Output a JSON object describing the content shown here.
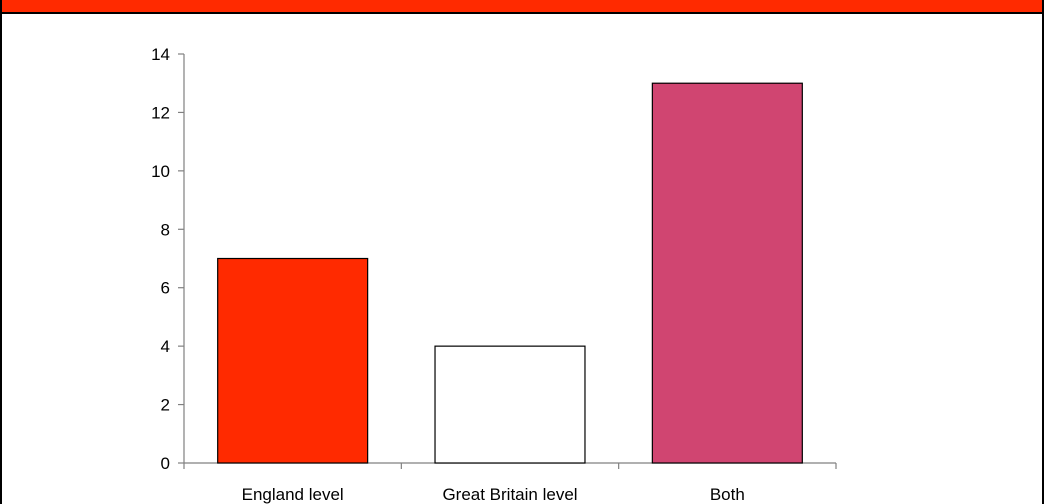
{
  "theme": {
    "top_bar_color": "#ff2a00"
  },
  "chart_data": {
    "type": "bar",
    "categories": [
      "England level",
      "Great Britain level",
      "Both"
    ],
    "values": [
      7,
      4,
      13
    ],
    "bar_colors": [
      "#ff2a00",
      "#ffffff",
      "#d04571"
    ],
    "ylim": [
      0,
      14
    ],
    "yticks": [
      "0",
      "2",
      "4",
      "6",
      "8",
      "10",
      "12",
      "14"
    ],
    "title": "",
    "xlabel": "",
    "ylabel": "",
    "grid": false,
    "legend": "none"
  }
}
